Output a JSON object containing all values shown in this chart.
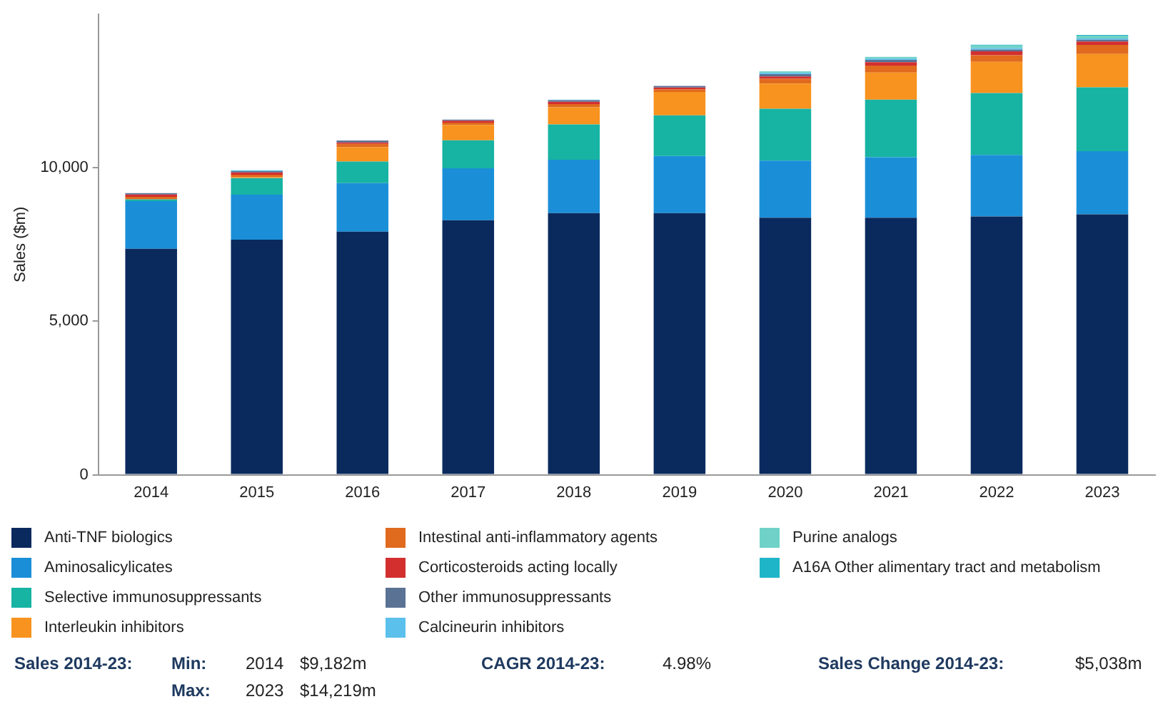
{
  "chart_data": {
    "type": "bar",
    "stacked": true,
    "ylabel": "Sales ($m)",
    "grid": false,
    "legend": "bottom",
    "categories": [
      "2014",
      "2015",
      "2016",
      "2017",
      "2018",
      "2019",
      "2020",
      "2021",
      "2022",
      "2023"
    ],
    "ylim": [
      0,
      15000
    ],
    "yticks": [
      {
        "value": 0,
        "label": "0"
      },
      {
        "value": 5000,
        "label": "5,000"
      },
      {
        "value": 10000,
        "label": "10,000"
      }
    ],
    "series": [
      {
        "name": "Anti-TNF biologics",
        "color": "#0a2a5e",
        "values": [
          7360,
          7660,
          7920,
          8290,
          8525,
          8525,
          8370,
          8370,
          8415,
          8480
        ]
      },
      {
        "name": "Aminosalicylicates",
        "color": "#1a8fd8",
        "values": [
          1550,
          1460,
          1580,
          1690,
          1735,
          1860,
          1860,
          1970,
          2000,
          2060
        ]
      },
      {
        "name": "Selective immunosuppressants",
        "color": "#17b3a3",
        "values": [
          60,
          540,
          700,
          915,
          1150,
          1320,
          1690,
          1875,
          2015,
          2080
        ]
      },
      {
        "name": "Interleukin inhibitors",
        "color": "#f7931e",
        "values": [
          0,
          30,
          465,
          495,
          560,
          760,
          820,
          885,
          1020,
          1085
        ]
      },
      {
        "name": "Intestinal anti-inflammatory agents",
        "color": "#e06a1e",
        "values": [
          80,
          80,
          110,
          80,
          100,
          90,
          155,
          230,
          215,
          295
        ]
      },
      {
        "name": "Corticosteroids acting locally",
        "color": "#d32f2f",
        "values": [
          80,
          80,
          50,
          60,
          80,
          60,
          78,
          110,
          125,
          110
        ]
      },
      {
        "name": "Other immunosuppressants",
        "color": "#5a7294",
        "values": [
          45,
          40,
          60,
          40,
          50,
          50,
          78,
          75,
          60,
          60
        ]
      },
      {
        "name": "Calcineurin inhibitors",
        "color": "#5bc0eb",
        "values": [
          0,
          25,
          0,
          0,
          20,
          0,
          40,
          40,
          45,
          40
        ]
      },
      {
        "name": "Purine analogs",
        "color": "#6fd1c8",
        "values": [
          0,
          0,
          0,
          0,
          0,
          0,
          50,
          55,
          90,
          95
        ]
      },
      {
        "name": "A16A Other alimentary tract and metabolism",
        "color": "#1fb5c9",
        "values": [
          0,
          0,
          0,
          0,
          0,
          0,
          0,
          0,
          20,
          20
        ]
      }
    ],
    "annotations": [
      "Sales 2014-23:",
      "Min:",
      "2014",
      "$9,182m",
      "CAGR 2014-23:",
      "4.98%",
      "Sales Change 2014-23:",
      "$5,038m",
      "Max:",
      "2023",
      "$14,219m"
    ]
  }
}
